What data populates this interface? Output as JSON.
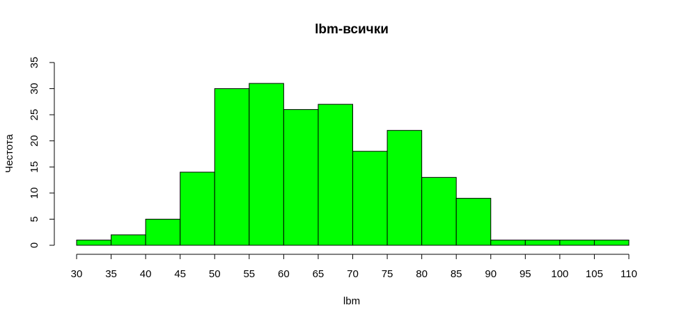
{
  "chart_data": {
    "type": "bar",
    "title": "lbm-всички",
    "xlabel": "lbm",
    "ylabel": "Честота",
    "bins": [
      [
        30,
        35
      ],
      [
        35,
        40
      ],
      [
        40,
        45
      ],
      [
        45,
        50
      ],
      [
        50,
        55
      ],
      [
        55,
        60
      ],
      [
        60,
        65
      ],
      [
        65,
        70
      ],
      [
        70,
        75
      ],
      [
        75,
        80
      ],
      [
        80,
        85
      ],
      [
        85,
        90
      ],
      [
        90,
        95
      ],
      [
        95,
        100
      ],
      [
        100,
        105
      ],
      [
        105,
        110
      ]
    ],
    "values": [
      1,
      2,
      5,
      14,
      30,
      31,
      26,
      27,
      18,
      22,
      13,
      9,
      1,
      1,
      1,
      1
    ],
    "xlim": [
      30,
      110
    ],
    "ylim": [
      0,
      35
    ],
    "xticks": [
      30,
      35,
      40,
      45,
      50,
      55,
      60,
      65,
      70,
      75,
      80,
      85,
      90,
      95,
      100,
      105,
      110
    ],
    "yticks": [
      0,
      5,
      10,
      15,
      20,
      25,
      30,
      35
    ],
    "bar_color": "#00ff00",
    "grid": false
  }
}
